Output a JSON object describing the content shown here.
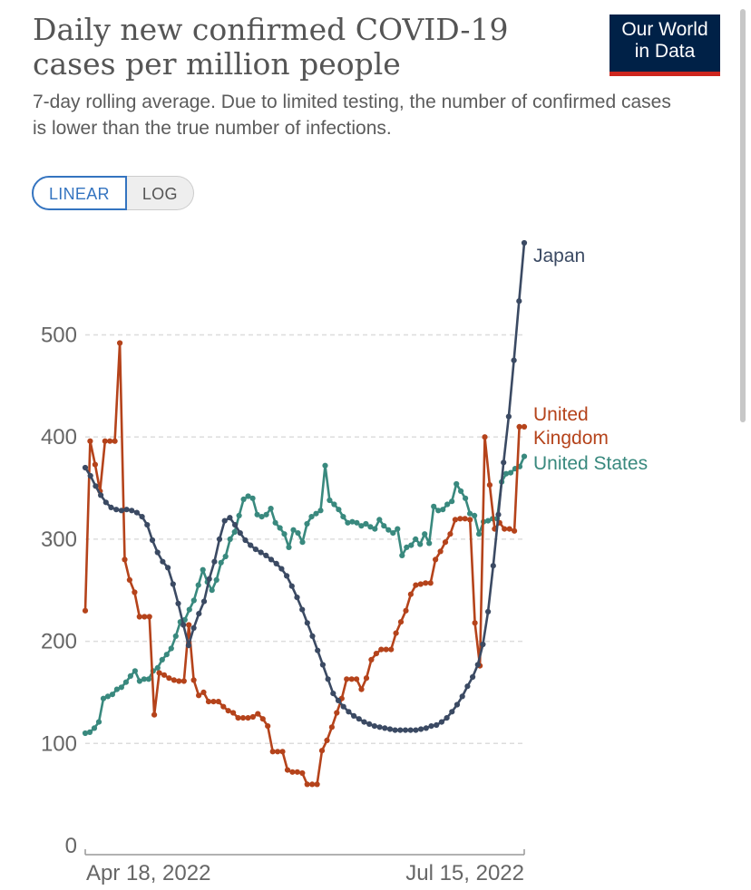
{
  "header": {
    "title": "Daily new confirmed COVID-19 cases per million people",
    "subtitle": "7-day rolling average. Due to limited testing, the number of confirmed cases is lower than the true number of infections.",
    "logo_line1": "Our World",
    "logo_line2": "in Data"
  },
  "toggle": {
    "linear_label": "LINEAR",
    "log_label": "LOG",
    "selected": "LINEAR"
  },
  "colors": {
    "japan": "#3b4a63",
    "united_kingdom": "#b5431b",
    "united_states": "#39897e",
    "grid": "#dddddd",
    "axis_text": "#666666"
  },
  "chart_data": {
    "type": "line",
    "title": "Daily new confirmed COVID-19 cases per million people",
    "subtitle": "7-day rolling average. Due to limited testing, the number of confirmed cases is lower than the true number of infections.",
    "ylim": [
      0,
      590
    ],
    "yticks": [
      0,
      100,
      200,
      300,
      400,
      500
    ],
    "ytick_labels": [
      "0",
      "100",
      "200",
      "300",
      "400",
      "500"
    ],
    "xtick_labels": [
      "Apr 18, 2022",
      "Jul 15, 2022"
    ],
    "x_start": "2022-04-18",
    "x_end": "2022-07-15",
    "grid": "horizontal dashed",
    "series": [
      {
        "name": "Japan",
        "label_lines": [
          "Japan"
        ],
        "color": "#3b4a63",
        "values": [
          370,
          362,
          352,
          343,
          336,
          331,
          329,
          328,
          329,
          328,
          326,
          322,
          314,
          299,
          287,
          278,
          272,
          256,
          237,
          216,
          196,
          213,
          227,
          239,
          261,
          278,
          300,
          318,
          321,
          314,
          306,
          299,
          294,
          290,
          287,
          284,
          280,
          276,
          271,
          264,
          254,
          243,
          231,
          218,
          205,
          191,
          177,
          163,
          149,
          142,
          136,
          131,
          127,
          124,
          121,
          119,
          117,
          116,
          115,
          114,
          113,
          113,
          113,
          113,
          113,
          114,
          115,
          117,
          118,
          121,
          125,
          131,
          138,
          146,
          156,
          165,
          177,
          197,
          229,
          274,
          324,
          375,
          420,
          475,
          533,
          590
        ]
      },
      {
        "name": "United Kingdom",
        "label_lines": [
          "United",
          "Kingdom"
        ],
        "color": "#b5431b",
        "values": [
          230,
          396,
          373,
          347,
          396,
          396,
          396,
          492,
          280,
          260,
          248,
          224,
          224,
          224,
          128,
          169,
          167,
          164,
          162,
          161,
          161,
          216,
          162,
          147,
          150,
          141,
          141,
          141,
          136,
          132,
          130,
          125,
          125,
          125,
          126,
          129,
          124,
          117,
          92,
          92,
          92,
          74,
          72,
          72,
          71,
          60,
          60,
          60,
          93,
          103,
          116,
          130,
          144,
          163,
          163,
          163,
          153,
          164,
          182,
          188,
          192,
          192,
          192,
          208,
          219,
          230,
          246,
          255,
          256,
          257,
          257,
          280,
          288,
          297,
          305,
          319,
          320,
          320,
          319,
          218,
          176,
          400,
          353,
          310,
          316,
          310,
          310,
          308,
          410,
          410
        ]
      },
      {
        "name": "United States",
        "label_lines": [
          "United States"
        ],
        "color": "#39897e",
        "values": [
          110,
          111,
          115,
          121,
          144,
          146,
          148,
          153,
          155,
          160,
          166,
          171,
          161,
          163,
          163,
          171,
          174,
          182,
          187,
          193,
          205,
          219,
          221,
          231,
          240,
          255,
          270,
          258,
          250,
          260,
          277,
          283,
          300,
          307,
          323,
          339,
          342,
          340,
          324,
          322,
          324,
          330,
          316,
          311,
          305,
          292,
          309,
          306,
          297,
          315,
          322,
          325,
          328,
          372,
          338,
          334,
          329,
          322,
          316,
          317,
          316,
          313,
          315,
          312,
          310,
          319,
          313,
          309,
          306,
          310,
          284,
          292,
          294,
          300,
          295,
          305,
          296,
          332,
          328,
          329,
          334,
          337,
          354,
          347,
          340,
          325,
          323,
          305,
          317,
          318,
          320,
          320,
          356,
          364,
          365,
          369,
          371,
          381
        ]
      }
    ]
  }
}
